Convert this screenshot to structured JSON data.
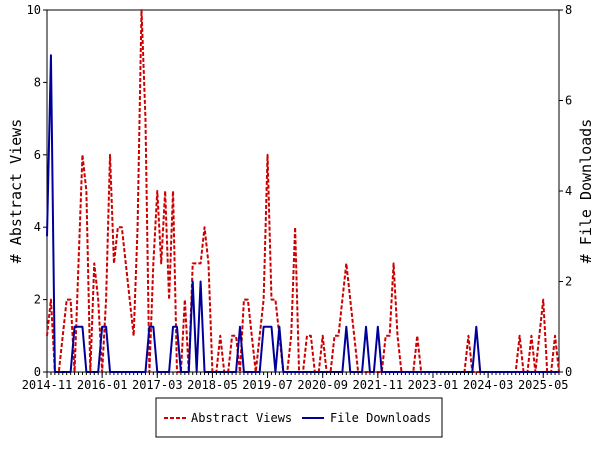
{
  "chart_data": {
    "type": "line",
    "title": "",
    "xlabel": "",
    "ylabel_left": "# Abstract Views",
    "ylabel_right": "# File Downloads",
    "x_ticks": [
      "2014-11",
      "2016-01",
      "2017-03",
      "2018-05",
      "2019-07",
      "2020-09",
      "2021-11",
      "2023-01",
      "2024-03",
      "2025-05"
    ],
    "y_left_ticks": [
      "0",
      "2",
      "4",
      "6",
      "8",
      "10"
    ],
    "y_right_ticks": [
      "0",
      "2",
      "4",
      "6",
      "8"
    ],
    "ylim_left": [
      0,
      10
    ],
    "ylim_right": [
      0,
      8
    ],
    "xlim": [
      0,
      130
    ],
    "grid": false,
    "legend_position": "bottom",
    "series": [
      {
        "name": "Abstract Views",
        "axis": "left",
        "color": "#cc0000",
        "style": "dashed",
        "x": [
          0,
          1,
          2,
          3,
          4,
          5,
          6,
          7,
          8,
          9,
          10,
          11,
          12,
          13,
          14,
          15,
          16,
          17,
          18,
          19,
          20,
          21,
          22,
          23,
          24,
          25,
          26,
          27,
          28,
          29,
          30,
          31,
          32,
          33,
          34,
          35,
          36,
          37,
          38,
          39,
          40,
          41,
          42,
          43,
          44,
          45,
          46,
          47,
          48,
          49,
          50,
          51,
          52,
          53,
          54,
          55,
          56,
          57,
          58,
          59,
          60,
          61,
          62,
          63,
          64,
          65,
          66,
          67,
          68,
          69,
          70,
          71,
          72,
          73,
          74,
          75,
          76,
          77,
          78,
          79,
          80,
          81,
          82,
          83,
          84,
          85,
          86,
          87,
          88,
          89,
          90,
          91,
          92,
          93,
          94,
          95,
          96,
          97,
          98,
          99,
          100,
          101,
          102,
          103,
          104,
          105,
          106,
          107,
          108,
          109,
          110,
          111,
          112,
          113,
          114,
          115,
          116,
          117,
          118,
          119,
          120,
          121,
          122,
          123,
          124,
          125,
          126,
          127,
          128,
          129,
          130
        ],
        "values": [
          1,
          2,
          0,
          0,
          1,
          2,
          2,
          0,
          3,
          6,
          5,
          0,
          3,
          2,
          0,
          2,
          6,
          3,
          4,
          4,
          3,
          2,
          1,
          4,
          10,
          7,
          0,
          3,
          5,
          3,
          5,
          2,
          5,
          0,
          0,
          2,
          0,
          3,
          3,
          3,
          4,
          3,
          0,
          0,
          1,
          0,
          0,
          1,
          1,
          0,
          2,
          2,
          1,
          0,
          1,
          2,
          6,
          2,
          2,
          1,
          0,
          0,
          1,
          4,
          0,
          0,
          1,
          1,
          0,
          0,
          1,
          0,
          0,
          1,
          1,
          2,
          3,
          2,
          1,
          0,
          0,
          0,
          0,
          0,
          0,
          0,
          1,
          1,
          3,
          1,
          0,
          0,
          0,
          0,
          1,
          0,
          0,
          0,
          0,
          0,
          0,
          0,
          0,
          0,
          0,
          0,
          0,
          1,
          0,
          0,
          0,
          0,
          0,
          0,
          0,
          0,
          0,
          0,
          0,
          0,
          1,
          0,
          0,
          1,
          0,
          1,
          2,
          0,
          0,
          1,
          0
        ]
      },
      {
        "name": "File Downloads",
        "axis": "right",
        "color": "#000099",
        "style": "solid",
        "x": [
          0,
          1,
          2,
          3,
          4,
          5,
          6,
          7,
          8,
          9,
          10,
          11,
          12,
          13,
          14,
          15,
          16,
          17,
          18,
          19,
          20,
          21,
          22,
          23,
          24,
          25,
          26,
          27,
          28,
          29,
          30,
          31,
          32,
          33,
          34,
          35,
          36,
          37,
          38,
          39,
          40,
          41,
          42,
          43,
          44,
          45,
          46,
          47,
          48,
          49,
          50,
          51,
          52,
          53,
          54,
          55,
          56,
          57,
          58,
          59,
          60,
          61,
          62,
          63,
          64,
          65,
          66,
          67,
          68,
          69,
          70,
          71,
          72,
          73,
          74,
          75,
          76,
          77,
          78,
          79,
          80,
          81,
          82,
          83,
          84,
          85,
          86,
          87,
          88,
          89,
          90,
          91,
          92,
          93,
          94,
          95,
          96,
          97,
          98,
          99,
          100,
          101,
          102,
          103,
          104,
          105,
          106,
          107,
          108,
          109,
          110,
          111,
          112,
          113,
          114,
          115,
          116,
          117,
          118,
          119,
          120,
          121,
          122,
          123,
          124,
          125,
          126,
          127,
          128,
          129,
          130
        ],
        "values": [
          3,
          7,
          0,
          0,
          0,
          0,
          0,
          1,
          1,
          1,
          0,
          0,
          0,
          0,
          1,
          1,
          0,
          0,
          0,
          0,
          0,
          0,
          0,
          0,
          0,
          0,
          1,
          1,
          0,
          0,
          0,
          0,
          1,
          1,
          0,
          0,
          0,
          2,
          0,
          2,
          0,
          0,
          0,
          0,
          0,
          0,
          0,
          0,
          0,
          1,
          0,
          0,
          0,
          0,
          0,
          1,
          1,
          1,
          0,
          1,
          0,
          0,
          0,
          0,
          0,
          0,
          0,
          0,
          0,
          0,
          0,
          0,
          0,
          0,
          0,
          0,
          1,
          0,
          0,
          0,
          0,
          1,
          0,
          0,
          1,
          0,
          0,
          0,
          0,
          0,
          0,
          0,
          0,
          0,
          0,
          0,
          0,
          0,
          0,
          0,
          0,
          0,
          0,
          0,
          0,
          0,
          0,
          0,
          0,
          1,
          0,
          0,
          0,
          0,
          0,
          0,
          0,
          0,
          0,
          0,
          0,
          0,
          0,
          0,
          0,
          0,
          0,
          0,
          0,
          0,
          0
        ]
      }
    ]
  }
}
